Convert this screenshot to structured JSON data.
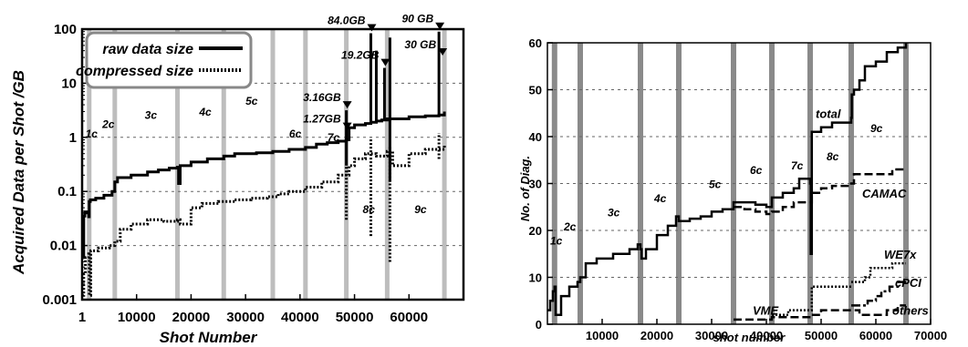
{
  "chart_data": [
    {
      "type": "line",
      "yscale": "log",
      "xlabel": "Shot Number",
      "ylabel": "Acquired Data per Shot  /GB",
      "xlim": [
        1,
        70000
      ],
      "ylim": [
        0.001,
        100
      ],
      "x_ticks": [
        1,
        10000,
        20000,
        30000,
        40000,
        50000,
        60000
      ],
      "x_tick_labels": [
        "1",
        "10000",
        "20000",
        "30000",
        "40000",
        "50000",
        "60000"
      ],
      "y_ticks": [
        0.001,
        0.01,
        0.1,
        1,
        10,
        100
      ],
      "y_tick_labels": [
        "0.001",
        "0.01",
        "0.1",
        "1",
        "10",
        "100"
      ],
      "grid": "y-major",
      "legend": "top-left",
      "cycle_boundaries": [
        1300,
        6000,
        17500,
        26000,
        35000,
        41000,
        48500,
        56000,
        66500
      ],
      "cycle_labels": [
        {
          "label": "1c",
          "x": 600,
          "y": 1.0
        },
        {
          "label": "2c",
          "x": 3700,
          "y": 1.5
        },
        {
          "label": "3c",
          "x": 11500,
          "y": 2.2
        },
        {
          "label": "4c",
          "x": 21500,
          "y": 2.5
        },
        {
          "label": "5c",
          "x": 30000,
          "y": 4.0
        },
        {
          "label": "6c",
          "x": 38000,
          "y": 1.0
        },
        {
          "label": "7c",
          "x": 45000,
          "y": 0.85
        },
        {
          "label": "8c",
          "x": 51500,
          "y": 0.04
        },
        {
          "label": "9c",
          "x": 61000,
          "y": 0.04
        }
      ],
      "peak_labels": [
        {
          "label": "84.0GB",
          "x": 53000,
          "y": 84
        },
        {
          "label": "90 GB",
          "x": 65500,
          "y": 90
        },
        {
          "label": "19.2GB",
          "x": 55500,
          "y": 19.2
        },
        {
          "label": "30 GB",
          "x": 66000,
          "y": 30
        },
        {
          "label": "3.16GB",
          "x": 48500,
          "y": 3.16
        },
        {
          "label": "1.27GB",
          "x": 48500,
          "y": 1.27
        }
      ],
      "series": [
        {
          "name": "raw data size",
          "style": "solid",
          "x": [
            1,
            300,
            500,
            800,
            1200,
            1300,
            1500,
            2500,
            4000,
            5500,
            6000,
            6500,
            9000,
            12000,
            14000,
            16000,
            17500,
            17700,
            18000,
            20000,
            23000,
            26000,
            28000,
            32000,
            35000,
            38000,
            41000,
            43000,
            45000,
            47000,
            48500,
            49000,
            50000,
            52000,
            53000,
            54000,
            55000,
            56000,
            57000,
            60000,
            63000,
            65500,
            66500
          ],
          "y": [
            0.006,
            0.035,
            0.042,
            0.04,
            0.034,
            0.065,
            0.07,
            0.075,
            0.085,
            0.1,
            0.15,
            0.18,
            0.2,
            0.23,
            0.25,
            0.27,
            0.28,
            0.14,
            0.3,
            0.35,
            0.4,
            0.45,
            0.5,
            0.52,
            0.55,
            0.6,
            0.65,
            0.75,
            0.8,
            0.85,
            0.9,
            1.5,
            1.7,
            1.8,
            1.9,
            2.0,
            2.1,
            2.2,
            2.2,
            2.4,
            2.5,
            2.6,
            3.0
          ],
          "spikes": [
            {
              "x": 48500,
              "peak": 3.16,
              "low": 0.3
            },
            {
              "x": 53000,
              "peak": 84.0,
              "low": 1.8
            },
            {
              "x": 54000,
              "peak": 40,
              "low": 1.9
            },
            {
              "x": 55500,
              "peak": 19.2,
              "low": 2.0
            },
            {
              "x": 56500,
              "peak": 70,
              "low": 0.15
            },
            {
              "x": 65500,
              "peak": 90,
              "low": 2.5
            }
          ]
        },
        {
          "name": "compressed size",
          "style": "dotted",
          "x": [
            1,
            300,
            600,
            1200,
            1300,
            1600,
            3000,
            5000,
            6000,
            7000,
            9000,
            12000,
            15000,
            17500,
            18000,
            20000,
            22000,
            25000,
            28000,
            31000,
            34000,
            36000,
            38000,
            41000,
            44000,
            47000,
            49000,
            50000,
            52000,
            54000,
            56000,
            57000,
            60000,
            63000,
            66500
          ],
          "y": [
            0.0012,
            0.003,
            0.006,
            0.007,
            0.0012,
            0.008,
            0.009,
            0.01,
            0.012,
            0.02,
            0.025,
            0.03,
            0.028,
            0.03,
            0.025,
            0.05,
            0.06,
            0.065,
            0.07,
            0.075,
            0.08,
            0.09,
            0.1,
            0.12,
            0.15,
            0.2,
            0.3,
            0.4,
            0.5,
            0.45,
            0.55,
            0.3,
            0.5,
            0.6,
            0.7
          ],
          "spikes": [
            {
              "x": 48500,
              "peak": 0.3,
              "low": 0.03
            },
            {
              "x": 53000,
              "peak": 1.0,
              "low": 0.015
            },
            {
              "x": 56500,
              "peak": 0.7,
              "low": 0.005
            },
            {
              "x": 65500,
              "peak": 1.2,
              "low": 0.4
            }
          ]
        }
      ]
    },
    {
      "type": "line",
      "xlabel": "shot number",
      "ylabel": "No. of Diag.",
      "xlim": [
        0,
        70000
      ],
      "ylim": [
        0,
        60
      ],
      "x_ticks": [
        10000,
        20000,
        30000,
        40000,
        50000,
        60000,
        70000
      ],
      "x_tick_labels": [
        "10000",
        "20000",
        "30000",
        "40000",
        "50000",
        "60000",
        "70000"
      ],
      "y_ticks": [
        0,
        10,
        20,
        30,
        40,
        50,
        60
      ],
      "y_tick_labels": [
        "0",
        "10",
        "20",
        "30",
        "40",
        "50",
        "60"
      ],
      "grid": "y-major",
      "cycle_boundaries": [
        1300,
        6000,
        17000,
        24000,
        34000,
        41000,
        48000,
        55500,
        65500
      ],
      "cycle_labels": [
        {
          "label": "1c",
          "x": 500,
          "y": 17
        },
        {
          "label": "2c",
          "x": 3000,
          "y": 20
        },
        {
          "label": "3c",
          "x": 11000,
          "y": 23
        },
        {
          "label": "4c",
          "x": 19500,
          "y": 26
        },
        {
          "label": "5c",
          "x": 29500,
          "y": 29
        },
        {
          "label": "6c",
          "x": 37000,
          "y": 32
        },
        {
          "label": "7c",
          "x": 44500,
          "y": 33
        },
        {
          "label": "8c",
          "x": 51000,
          "y": 35
        },
        {
          "label": "9c",
          "x": 59000,
          "y": 41
        }
      ],
      "series_labels": [
        {
          "label": "total",
          "x": 49000,
          "y": 44
        },
        {
          "label": "CAMAC",
          "x": 57500,
          "y": 27
        },
        {
          "label": "WE7x",
          "x": 61500,
          "y": 14
        },
        {
          "label": "cPCI",
          "x": 63500,
          "y": 8
        },
        {
          "label": "VME",
          "x": 37500,
          "y": 2
        },
        {
          "label": "others",
          "x": 63000,
          "y": 2
        }
      ],
      "series": [
        {
          "name": "total",
          "style": "solid",
          "x": [
            0,
            500,
            1000,
            1300,
            1500,
            2500,
            4000,
            5500,
            6000,
            7000,
            9000,
            12000,
            15000,
            16500,
            17000,
            17200,
            18000,
            20000,
            22000,
            23500,
            24000,
            26000,
            28000,
            30000,
            32000,
            34000,
            36000,
            38000,
            40000,
            41000,
            43000,
            45000,
            46000,
            47500,
            48000,
            48100,
            48300,
            50000,
            52000,
            54000,
            55500,
            55600,
            56000,
            57000,
            58000,
            60000,
            62000,
            64000,
            65500
          ],
          "y": [
            3,
            5,
            7,
            8,
            2,
            6,
            8,
            9,
            10,
            13,
            14,
            15,
            16,
            17,
            16,
            14,
            16,
            19,
            21,
            23,
            22,
            22.5,
            23,
            24,
            24.5,
            26,
            26,
            25.5,
            25,
            27,
            28,
            29,
            31,
            31,
            30,
            15,
            41,
            42,
            43,
            43,
            44,
            49,
            50,
            52,
            55,
            56,
            58,
            59,
            60
          ]
        },
        {
          "name": "CAMAC",
          "style": "dashed",
          "x": [
            34000,
            36000,
            38000,
            40000,
            41000,
            43000,
            45000,
            47000,
            48300,
            50000,
            52000,
            55500,
            56000,
            60000,
            63000,
            65500
          ],
          "y": [
            25,
            24.5,
            24,
            23.5,
            24,
            25,
            26,
            26,
            28,
            29,
            29.5,
            30,
            32,
            32,
            33,
            33
          ]
        },
        {
          "name": "WE7x",
          "style": "dotted",
          "x": [
            55500,
            57000,
            58000,
            59000,
            61000,
            63000,
            65500
          ],
          "y": [
            9,
            9,
            10,
            12,
            12,
            13,
            13
          ]
        },
        {
          "name": "cPCI",
          "style": "dash-dot",
          "x": [
            55500,
            57000,
            58500,
            60000,
            61000,
            62500,
            64000,
            65500
          ],
          "y": [
            4,
            4,
            5,
            6,
            7,
            8,
            9,
            9
          ]
        },
        {
          "name": "VME",
          "style": "dotted",
          "x": [
            41000,
            44000,
            47000,
            48300,
            50000,
            53000,
            55500
          ],
          "y": [
            2,
            3,
            3,
            8,
            8,
            8,
            8
          ]
        },
        {
          "name": "others",
          "style": "dashed",
          "x": [
            34000,
            41000,
            48300,
            50000,
            55500,
            57000,
            60000,
            62000,
            64000,
            65500
          ],
          "y": [
            1,
            1.5,
            2,
            3,
            3,
            2,
            2,
            3,
            4,
            4
          ]
        }
      ]
    }
  ]
}
